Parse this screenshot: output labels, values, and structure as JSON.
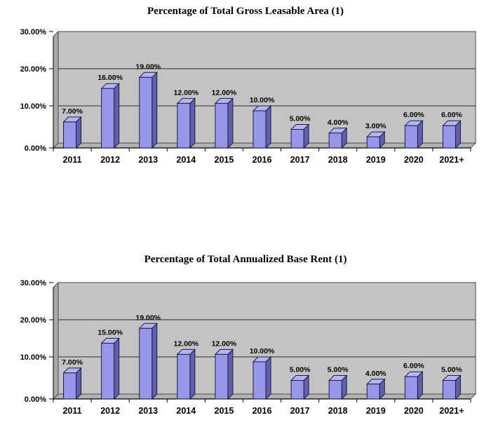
{
  "page": {
    "background": "#ffffff"
  },
  "chart_data": [
    {
      "type": "bar",
      "style": "3d-column",
      "title": "Percentage of Total Gross Leasable Area (1)",
      "categories": [
        "2011",
        "2012",
        "2013",
        "2014",
        "2015",
        "2016",
        "2017",
        "2018",
        "2019",
        "2020",
        "2021+"
      ],
      "values": [
        7,
        16,
        19,
        12,
        12,
        10,
        5,
        4,
        3,
        6,
        6
      ],
      "value_labels": [
        "7.00%",
        "16.00%",
        "19.00%",
        "12.00%",
        "12.00%",
        "10.00%",
        "5.00%",
        "4.00%",
        "3.00%",
        "6.00%",
        "6.00%"
      ],
      "xlabel": "",
      "ylabel": "",
      "ylim": [
        0,
        30
      ],
      "yticks": [
        0,
        10,
        20,
        30
      ],
      "ytick_labels": [
        "0.00%",
        "10.00%",
        "20.00%",
        "30.00%"
      ],
      "grid": true,
      "legend": "none",
      "colors": {
        "bar_front": "#9797ea",
        "bar_top": "#b5b5f3",
        "bar_side": "#6060ae",
        "bar_outline": "#1c1c45",
        "wall": "#c3c3c3",
        "side_wall": "#a8a8a8",
        "floor": "#b2b2b2",
        "gridline": "#2a2a2a",
        "frame": "#4a4a4a",
        "axis": "#000000"
      }
    },
    {
      "type": "bar",
      "style": "3d-column",
      "title": "Percentage of Total Annualized Base Rent (1)",
      "categories": [
        "2011",
        "2012",
        "2013",
        "2014",
        "2015",
        "2016",
        "2017",
        "2018",
        "2019",
        "2020",
        "2021+"
      ],
      "values": [
        7,
        15,
        19,
        12,
        12,
        10,
        5,
        5,
        4,
        6,
        5
      ],
      "value_labels": [
        "7.00%",
        "15.00%",
        "19.00%",
        "12.00%",
        "12.00%",
        "10.00%",
        "5.00%",
        "5.00%",
        "4.00%",
        "6.00%",
        "5.00%"
      ],
      "xlabel": "",
      "ylabel": "",
      "ylim": [
        0,
        30
      ],
      "yticks": [
        0,
        10,
        20,
        30
      ],
      "ytick_labels": [
        "0.00%",
        "10.00%",
        "20.00%",
        "30.00%"
      ],
      "grid": true,
      "legend": "none",
      "colors": {
        "bar_front": "#9797ea",
        "bar_top": "#b5b5f3",
        "bar_side": "#6060ae",
        "bar_outline": "#1c1c45",
        "wall": "#c3c3c3",
        "side_wall": "#a8a8a8",
        "floor": "#b2b2b2",
        "gridline": "#2a2a2a",
        "frame": "#4a4a4a",
        "axis": "#000000"
      }
    }
  ]
}
